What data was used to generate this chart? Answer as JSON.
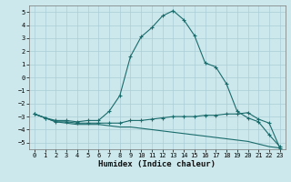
{
  "xlabel": "Humidex (Indice chaleur)",
  "xlim": [
    -0.5,
    23.5
  ],
  "ylim": [
    -5.5,
    5.5
  ],
  "xticks": [
    0,
    1,
    2,
    3,
    4,
    5,
    6,
    7,
    8,
    9,
    10,
    11,
    12,
    13,
    14,
    15,
    16,
    17,
    18,
    19,
    20,
    21,
    22,
    23
  ],
  "yticks": [
    -5,
    -4,
    -3,
    -2,
    -1,
    0,
    1,
    2,
    3,
    4,
    5
  ],
  "bg_color": "#cce8ec",
  "line_color": "#1a6b6b",
  "grid_color": "#aacdd4",
  "line1_x": [
    0,
    1,
    2,
    3,
    4,
    5,
    6,
    7,
    8,
    9,
    10,
    11,
    12,
    13,
    14,
    15,
    16,
    17,
    18,
    19,
    20,
    21,
    22,
    23
  ],
  "line1_y": [
    -2.8,
    -3.1,
    -3.3,
    -3.3,
    -3.4,
    -3.3,
    -3.3,
    -2.6,
    -1.4,
    1.6,
    3.1,
    3.8,
    4.7,
    5.1,
    4.4,
    3.2,
    1.1,
    0.8,
    -0.5,
    -2.6,
    -3.1,
    -3.4,
    -4.4,
    -5.3
  ],
  "line2_x": [
    0,
    1,
    2,
    3,
    4,
    5,
    6,
    7,
    8,
    9,
    10,
    11,
    12,
    13,
    14,
    15,
    16,
    17,
    18,
    19,
    20,
    21,
    22,
    23
  ],
  "line2_y": [
    -2.8,
    -3.1,
    -3.4,
    -3.4,
    -3.5,
    -3.5,
    -3.5,
    -3.5,
    -3.5,
    -3.3,
    -3.3,
    -3.2,
    -3.1,
    -3.0,
    -3.0,
    -3.0,
    -2.9,
    -2.9,
    -2.8,
    -2.8,
    -2.7,
    -3.2,
    -3.5,
    -5.4
  ],
  "line3_x": [
    0,
    1,
    2,
    3,
    4,
    5,
    6,
    7,
    8,
    9,
    10,
    11,
    12,
    13,
    14,
    15,
    16,
    17,
    18,
    19,
    20,
    21,
    22,
    23
  ],
  "line3_y": [
    -2.8,
    -3.1,
    -3.4,
    -3.5,
    -3.6,
    -3.6,
    -3.6,
    -3.7,
    -3.8,
    -3.8,
    -3.9,
    -4.0,
    -4.1,
    -4.2,
    -4.3,
    -4.4,
    -4.5,
    -4.6,
    -4.7,
    -4.8,
    -4.9,
    -5.1,
    -5.3,
    -5.4
  ],
  "tick_fontsize": 5.0,
  "xlabel_fontsize": 6.5
}
